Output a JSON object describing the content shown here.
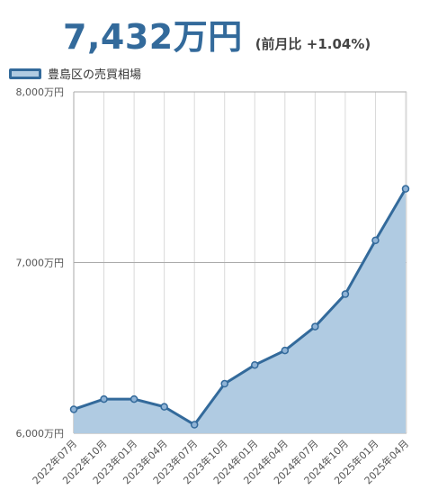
{
  "header": {
    "price": "7,432万円",
    "change": "(前月比 +1.04%)"
  },
  "colors": {
    "line": "#336a9b",
    "fill": "#b0cbe2",
    "point_fill": "#8fb3d6",
    "grid": "#d9d9d9",
    "grid_major": "#aaaaaa"
  },
  "chart_data": {
    "type": "area",
    "legend_position": "top-left",
    "grid": true,
    "x": [
      "2022年07月",
      "2022年10月",
      "2023年01月",
      "2023年04月",
      "2023年07月",
      "2023年10月",
      "2024年01月",
      "2024年04月",
      "2024年07月",
      "2024年10月",
      "2025年01月",
      "2025年04月"
    ],
    "series": [
      {
        "name": "豊島区の売買相場",
        "values": [
          6140,
          6200,
          6200,
          6155,
          6050,
          6290,
          6400,
          6485,
          6625,
          6815,
          7130,
          7432
        ]
      }
    ],
    "ylim": [
      6000,
      8000
    ],
    "yticks": [
      6000,
      7000,
      8000
    ],
    "ytick_labels": [
      "6,000万円",
      "7,000万円",
      "8,000万円"
    ]
  }
}
